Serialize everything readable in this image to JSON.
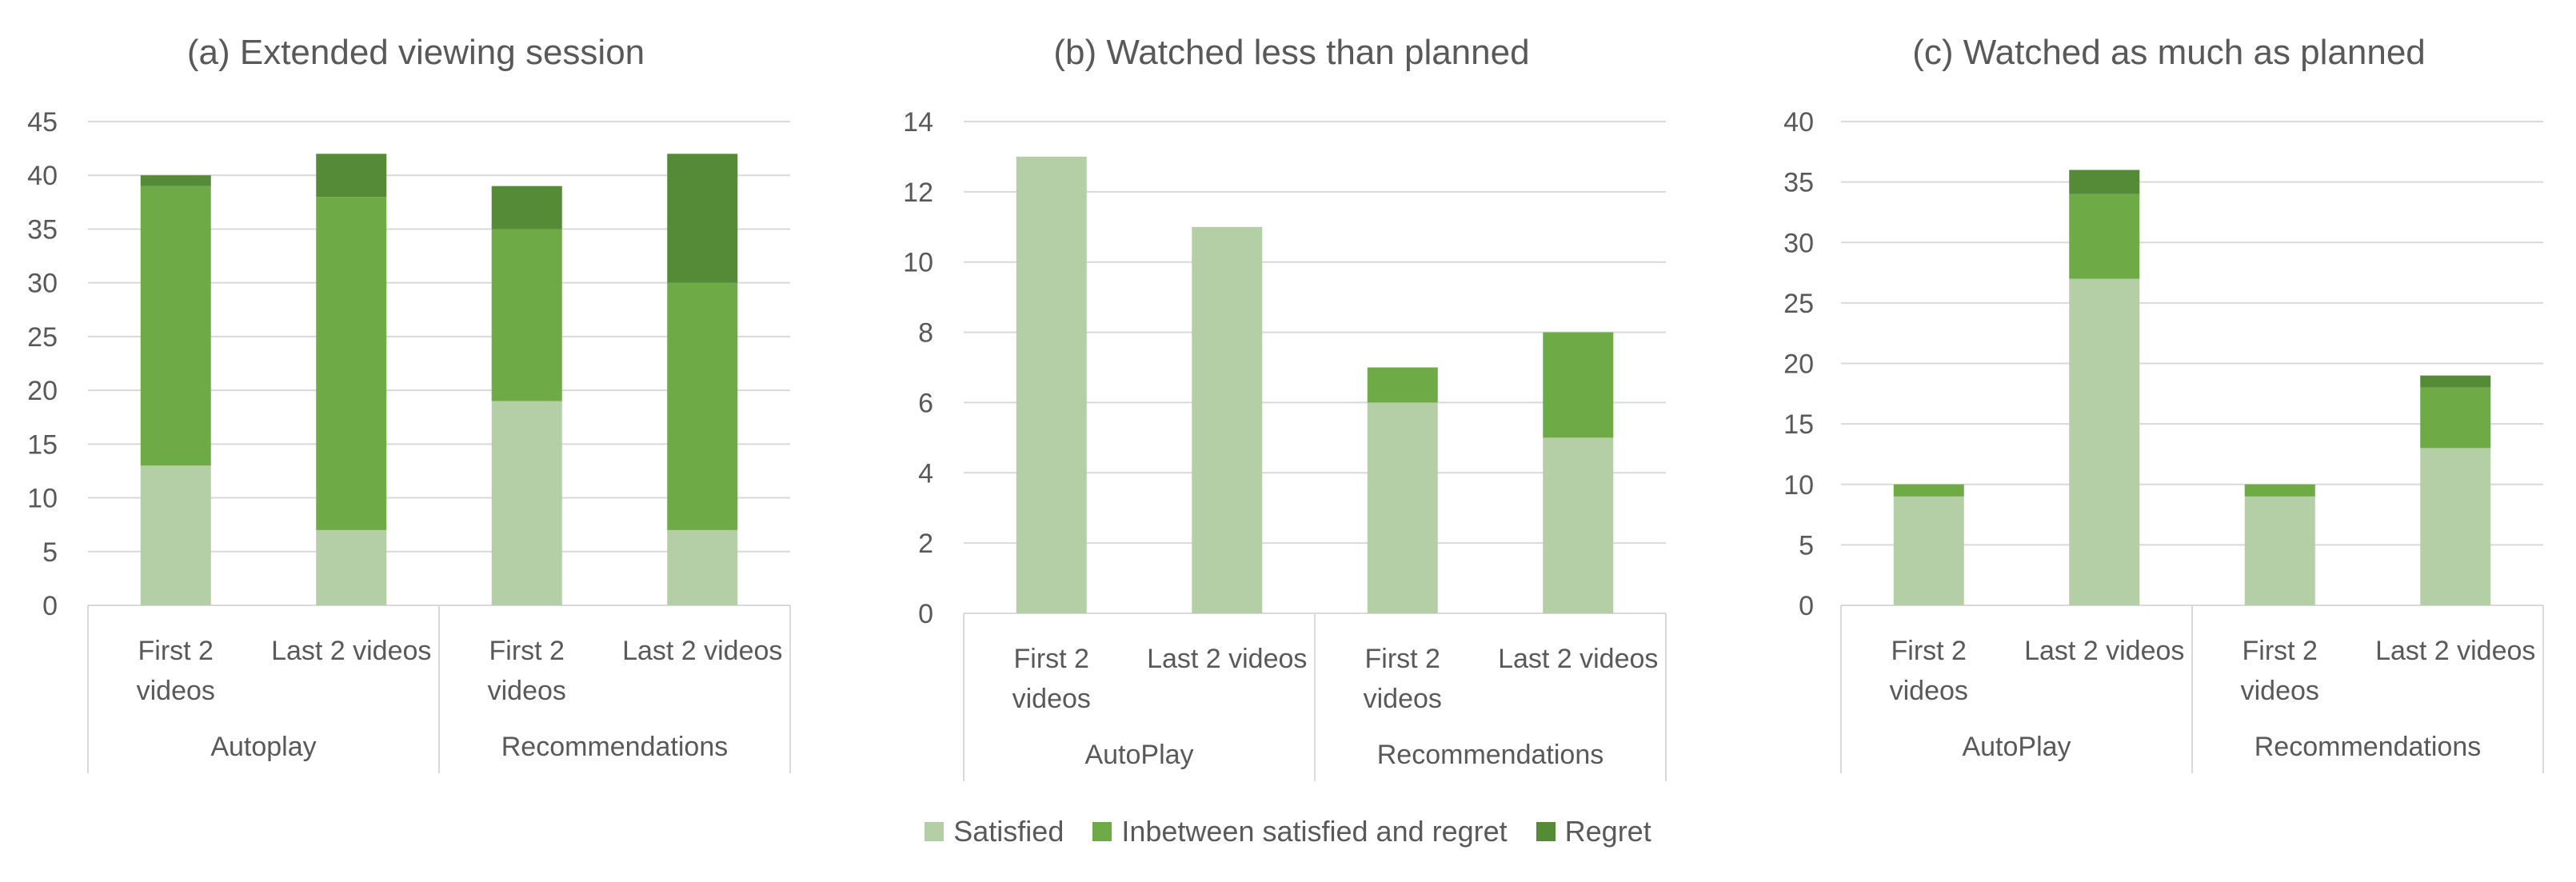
{
  "colors": {
    "satisfied": "#b4cfa6",
    "inbetween": "#6eaa45",
    "regret": "#558b37",
    "grid": "#d9d9d9",
    "text": "#595959"
  },
  "legend": [
    {
      "key": "satisfied",
      "label": "Satisfied"
    },
    {
      "key": "inbetween",
      "label": "Inbetween satisfied and regret"
    },
    {
      "key": "regret",
      "label": "Regret"
    }
  ],
  "chart_data": [
    {
      "type": "bar",
      "stacked": true,
      "title": "(a) Extended viewing session",
      "ylim": [
        0,
        45
      ],
      "yticks": [
        0,
        5,
        10,
        15,
        20,
        25,
        30,
        35,
        40,
        45
      ],
      "categories": [
        "First 2 videos",
        "Last 2 videos",
        "First 2 videos",
        "Last 2 videos"
      ],
      "groups": [
        {
          "label": "Autoplay",
          "span": 2
        },
        {
          "label": "Recommendations",
          "span": 2
        }
      ],
      "series": [
        {
          "name": "Satisfied",
          "values": [
            13,
            7,
            19,
            7
          ]
        },
        {
          "name": "Inbetween satisfied and regret",
          "values": [
            26,
            31,
            16,
            23
          ]
        },
        {
          "name": "Regret",
          "values": [
            1,
            4,
            4,
            12
          ]
        }
      ],
      "grid": true,
      "legend": "bottom"
    },
    {
      "type": "bar",
      "stacked": true,
      "title": "(b) Watched less than planned",
      "ylim": [
        0,
        14
      ],
      "yticks": [
        0,
        2,
        4,
        6,
        8,
        10,
        12,
        14
      ],
      "categories": [
        "First 2 videos",
        "Last 2 videos",
        "First 2 videos",
        "Last 2 videos"
      ],
      "groups": [
        {
          "label": "AutoPlay",
          "span": 2
        },
        {
          "label": "Recommendations",
          "span": 2
        }
      ],
      "series": [
        {
          "name": "Satisfied",
          "values": [
            13,
            11,
            6,
            5
          ]
        },
        {
          "name": "Inbetween satisfied and regret",
          "values": [
            0,
            0,
            1,
            3
          ]
        },
        {
          "name": "Regret",
          "values": [
            0,
            0,
            0,
            0
          ]
        }
      ],
      "grid": true,
      "legend": "bottom"
    },
    {
      "type": "bar",
      "stacked": true,
      "title": "(c) Watched as much as planned",
      "ylim": [
        0,
        40
      ],
      "yticks": [
        0,
        5,
        10,
        15,
        20,
        25,
        30,
        35,
        40
      ],
      "categories": [
        "First 2 videos",
        "Last 2 videos",
        "First 2 videos",
        "Last 2 videos"
      ],
      "groups": [
        {
          "label": "AutoPlay",
          "span": 2
        },
        {
          "label": "Recommendations",
          "span": 2
        }
      ],
      "series": [
        {
          "name": "Satisfied",
          "values": [
            9,
            27,
            9,
            13
          ]
        },
        {
          "name": "Inbetween satisfied and regret",
          "values": [
            1,
            7,
            1,
            5
          ]
        },
        {
          "name": "Regret",
          "values": [
            0,
            2,
            0,
            1
          ]
        }
      ],
      "grid": true,
      "legend": "bottom"
    }
  ]
}
